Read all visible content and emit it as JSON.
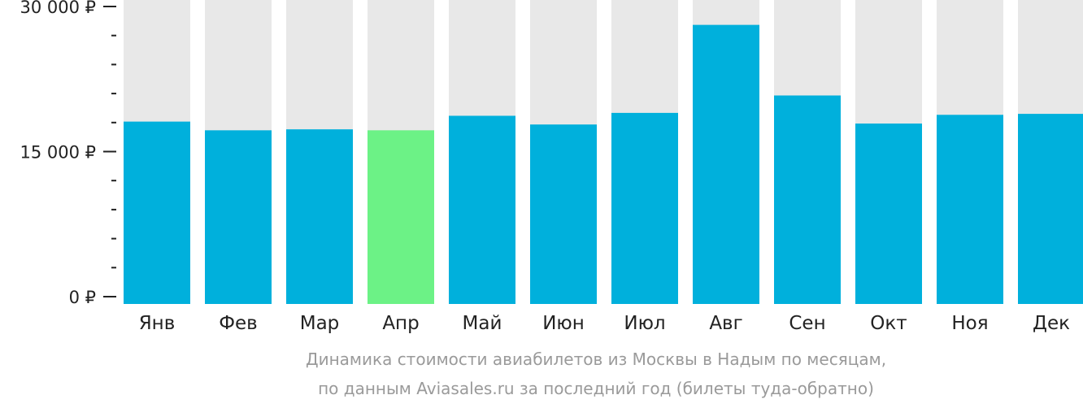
{
  "chart_data": {
    "type": "bar",
    "categories": [
      "Янв",
      "Фев",
      "Мар",
      "Апр",
      "Май",
      "Июн",
      "Июл",
      "Авг",
      "Сен",
      "Окт",
      "Ноя",
      "Дек"
    ],
    "values": [
      18100,
      17200,
      17300,
      17200,
      18700,
      17800,
      19000,
      28100,
      20800,
      17900,
      18800,
      18900
    ],
    "ylim": [
      0,
      30000
    ],
    "y_ticks": [
      {
        "value": 0,
        "label": "0 ₽"
      },
      {
        "value": 15000,
        "label": "15 000 ₽"
      },
      {
        "value": 30000,
        "label": "30 000 ₽"
      }
    ],
    "highlight_index": 3,
    "colors": {
      "bar": "#00b0dc",
      "highlight": "#6cf286",
      "track": "#e8e8e8",
      "axis": "#222222"
    },
    "caption": [
      "Динамика стоимости авиабилетов из Москвы в Надым по месяцам,",
      "по данным Aviasales.ru за последний год (билеты туда-обратно)"
    ]
  }
}
